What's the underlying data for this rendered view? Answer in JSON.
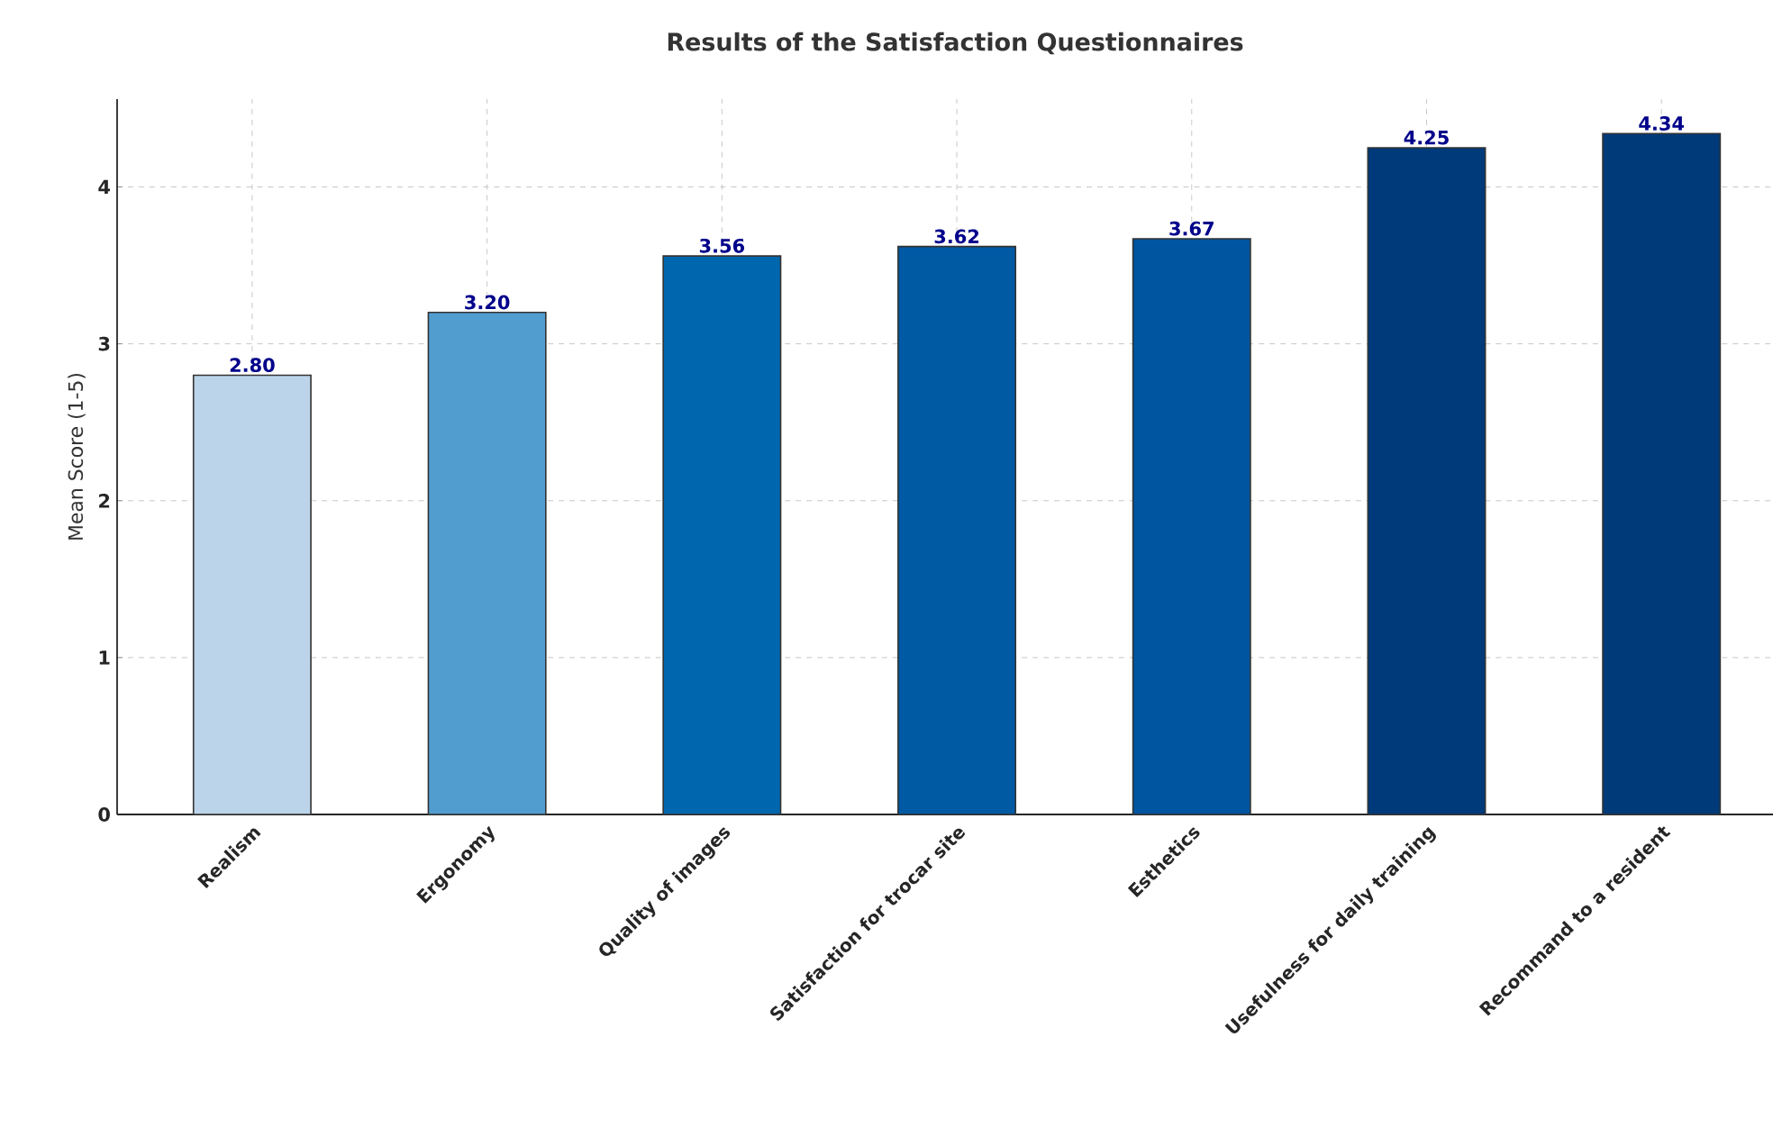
{
  "chart_data": {
    "type": "bar",
    "title": "Results of the Satisfaction Questionnaires",
    "ylabel": "Mean Score (1-5)",
    "categories": [
      "Realism",
      "Ergonomy",
      "Quality of images",
      "Satisfaction for trocar site",
      "Esthetics",
      "Usefulness for daily training",
      "Recommand to a resident"
    ],
    "values": [
      2.8,
      3.2,
      3.56,
      3.62,
      3.67,
      4.25,
      4.34
    ],
    "value_labels": [
      "2.80",
      "3.20",
      "3.56",
      "3.62",
      "3.67",
      "4.25",
      "4.34"
    ],
    "colors": [
      "#bcd4ea",
      "#529dd0",
      "#0066ad",
      "#0059a3",
      "#0055a0",
      "#003a7a",
      "#003a78"
    ],
    "ylim": [
      0,
      4.56
    ],
    "yticks": [
      0,
      1,
      2,
      3,
      4
    ],
    "grid": true
  }
}
